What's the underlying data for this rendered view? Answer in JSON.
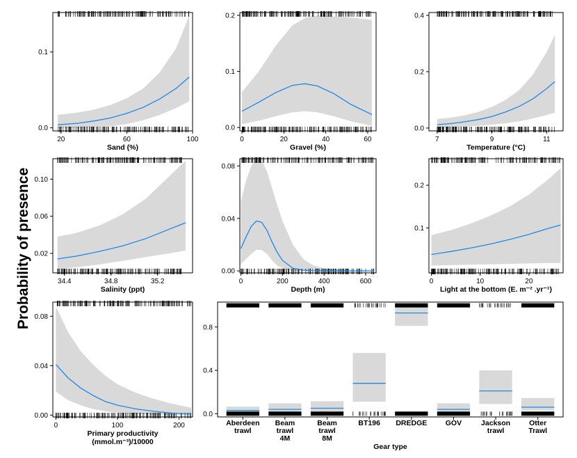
{
  "figure": {
    "ylabel": "Probability of presence"
  },
  "colors": {
    "line": "#1e88e5",
    "band": "#d9d9d9",
    "frame": "#000000",
    "rug": "#000000"
  },
  "chart_data": [
    {
      "id": "sand",
      "type": "line",
      "xlabel": [
        "Sand (%)"
      ],
      "xlim": [
        15,
        100
      ],
      "ylim": [
        -0.004,
        0.152
      ],
      "xticks": [
        20,
        60,
        100
      ],
      "yticks": [
        0.0,
        0.1
      ],
      "ytick_labels": [
        "0.0",
        "0.1"
      ],
      "series": [
        {
          "x": [
            18,
            30,
            40,
            50,
            60,
            70,
            80,
            90,
            98
          ],
          "y": [
            0.004,
            0.006,
            0.009,
            0.013,
            0.019,
            0.027,
            0.038,
            0.052,
            0.067
          ],
          "lower": [
            0.0,
            0.0,
            0.001,
            0.002,
            0.005,
            0.01,
            0.017,
            0.026,
            0.035
          ],
          "upper": [
            0.017,
            0.02,
            0.024,
            0.03,
            0.039,
            0.052,
            0.073,
            0.105,
            0.148
          ]
        }
      ]
    },
    {
      "id": "gravel",
      "type": "line",
      "xlabel": [
        "Gravel (%)"
      ],
      "xlim": [
        -1,
        64
      ],
      "ylim": [
        -0.006,
        0.205
      ],
      "xticks": [
        0,
        20,
        40,
        60
      ],
      "yticks": [
        0.0,
        0.1,
        0.2
      ],
      "ytick_labels": [
        "0.0",
        "0.1",
        "0.2"
      ],
      "series": [
        {
          "x": [
            0,
            8,
            16,
            24,
            30,
            36,
            44,
            52,
            62
          ],
          "y": [
            0.029,
            0.045,
            0.062,
            0.075,
            0.078,
            0.074,
            0.06,
            0.041,
            0.023
          ],
          "lower": [
            0.006,
            0.012,
            0.02,
            0.027,
            0.029,
            0.027,
            0.02,
            0.011,
            0.003
          ],
          "upper": [
            0.063,
            0.1,
            0.145,
            0.182,
            0.195,
            0.2,
            0.198,
            0.196,
            0.192
          ]
        }
      ]
    },
    {
      "id": "temperature",
      "type": "line",
      "xlabel": [
        "Temperature (°C)"
      ],
      "xlim": [
        6.7,
        11.6
      ],
      "ylim": [
        -0.01,
        0.41
      ],
      "xticks": [
        7,
        9,
        11
      ],
      "yticks": [
        0.0,
        0.2,
        0.4
      ],
      "ytick_labels": [
        "0.0",
        "0.2",
        "0.4"
      ],
      "series": [
        {
          "x": [
            7,
            7.5,
            8,
            8.5,
            9,
            9.5,
            10,
            10.5,
            11,
            11.3
          ],
          "y": [
            0.012,
            0.016,
            0.022,
            0.03,
            0.041,
            0.057,
            0.077,
            0.104,
            0.14,
            0.165
          ],
          "lower": [
            0.002,
            0.003,
            0.005,
            0.008,
            0.012,
            0.017,
            0.024,
            0.034,
            0.046,
            0.055
          ],
          "upper": [
            0.032,
            0.037,
            0.045,
            0.057,
            0.075,
            0.1,
            0.135,
            0.19,
            0.27,
            0.33
          ]
        }
      ]
    },
    {
      "id": "salinity",
      "type": "line",
      "xlabel": [
        "Salinity (ppt)"
      ],
      "xlim": [
        34.3,
        35.5
      ],
      "ylim": [
        -0.001,
        0.122
      ],
      "xticks": [
        34.4,
        34.8,
        35.2
      ],
      "yticks": [
        0.02,
        0.06,
        0.1
      ],
      "ytick_labels": [
        "0.02",
        "0.06",
        "0.10"
      ],
      "series": [
        {
          "x": [
            34.34,
            34.5,
            34.7,
            34.9,
            35.1,
            35.3,
            35.44
          ],
          "y": [
            0.014,
            0.017,
            0.022,
            0.028,
            0.036,
            0.046,
            0.053
          ],
          "lower": [
            0.003,
            0.005,
            0.008,
            0.012,
            0.016,
            0.02,
            0.023
          ],
          "upper": [
            0.038,
            0.042,
            0.05,
            0.062,
            0.079,
            0.103,
            0.12
          ]
        }
      ]
    },
    {
      "id": "depth",
      "type": "line",
      "xlabel": [
        "Depth (m)"
      ],
      "xlim": [
        -5,
        650
      ],
      "ylim": [
        -0.0015,
        0.0855
      ],
      "xticks": [
        0,
        200,
        400,
        600
      ],
      "yticks": [
        0.0,
        0.04,
        0.08
      ],
      "ytick_labels": [
        "0.00",
        "0.04",
        "0.08"
      ],
      "series": [
        {
          "x": [
            0,
            25,
            50,
            75,
            100,
            125,
            150,
            175,
            200,
            250,
            300,
            350,
            400,
            500,
            640
          ],
          "y": [
            0.017,
            0.026,
            0.034,
            0.038,
            0.037,
            0.031,
            0.022,
            0.014,
            0.008,
            0.002,
            0.0005,
            0.0001,
            0.0,
            0.0,
            0.0
          ],
          "lower": [
            0.005,
            0.009,
            0.013,
            0.016,
            0.016,
            0.013,
            0.008,
            0.004,
            0.002,
            0.0,
            0.0,
            0.0,
            0.0,
            0.0,
            0.0
          ],
          "upper": [
            0.053,
            0.069,
            0.08,
            0.085,
            0.084,
            0.076,
            0.063,
            0.05,
            0.038,
            0.02,
            0.009,
            0.004,
            0.002,
            0.0005,
            0.0001
          ]
        }
      ]
    },
    {
      "id": "light",
      "type": "line",
      "xlabel": [
        "Light at the bottom (E. m⁻² .yr⁻¹)"
      ],
      "xlim": [
        -0.5,
        27
      ],
      "ylim": [
        -0.005,
        0.262
      ],
      "xticks": [
        0,
        10,
        20
      ],
      "yticks": [
        0.1,
        0.2
      ],
      "ytick_labels": [
        "0.1",
        "0.2"
      ],
      "series": [
        {
          "x": [
            0,
            4,
            8,
            12,
            16,
            20,
            24,
            26.5
          ],
          "y": [
            0.038,
            0.045,
            0.053,
            0.062,
            0.073,
            0.085,
            0.099,
            0.107
          ],
          "lower": [
            0.012,
            0.013,
            0.014,
            0.015,
            0.016,
            0.017,
            0.018,
            0.018
          ],
          "upper": [
            0.083,
            0.095,
            0.11,
            0.128,
            0.15,
            0.178,
            0.214,
            0.24
          ]
        }
      ]
    },
    {
      "id": "productivity",
      "type": "line",
      "xlabel": [
        "Primary productivity",
        "(mmol.m⁻³)/10000"
      ],
      "xlim": [
        -5,
        222
      ],
      "ylim": [
        -0.0015,
        0.0915
      ],
      "xticks": [
        0,
        100,
        200
      ],
      "yticks": [
        0.0,
        0.04,
        0.08
      ],
      "ytick_labels": [
        "0.00",
        "0.04",
        "0.08"
      ],
      "series": [
        {
          "x": [
            0,
            20,
            40,
            60,
            80,
            100,
            130,
            160,
            190,
            220
          ],
          "y": [
            0.041,
            0.03,
            0.022,
            0.016,
            0.011,
            0.008,
            0.005,
            0.003,
            0.0015,
            0.001
          ],
          "lower": [
            0.019,
            0.012,
            0.008,
            0.005,
            0.003,
            0.002,
            0.001,
            0.0003,
            0.0001,
            0.0
          ],
          "upper": [
            0.088,
            0.067,
            0.052,
            0.041,
            0.032,
            0.025,
            0.018,
            0.013,
            0.009,
            0.006
          ]
        }
      ]
    },
    {
      "id": "gear",
      "type": "bar",
      "xlabel": [
        "Gear type"
      ],
      "ylim": [
        -0.03,
        1.03
      ],
      "yticks": [
        0.0,
        0.4,
        0.8
      ],
      "ytick_labels": [
        "0.0",
        "0.4",
        "0.8"
      ],
      "categories": [
        [
          "Aberdeen",
          "trawl"
        ],
        [
          "Beam",
          "trawl",
          "4M"
        ],
        [
          "Beam",
          "trawl",
          "8M"
        ],
        [
          "BT196"
        ],
        [
          "DREDGE"
        ],
        [
          "GOV"
        ],
        [
          "Jackson",
          "trawl"
        ],
        [
          "Otter",
          "Trawl"
        ]
      ],
      "values": [
        0.03,
        0.04,
        0.05,
        0.28,
        0.93,
        0.04,
        0.21,
        0.06
      ],
      "lower": [
        0.01,
        0.015,
        0.02,
        0.11,
        0.81,
        0.02,
        0.09,
        0.03
      ],
      "upper": [
        0.065,
        0.095,
        0.115,
        0.56,
        0.99,
        0.095,
        0.4,
        0.145
      ]
    }
  ]
}
